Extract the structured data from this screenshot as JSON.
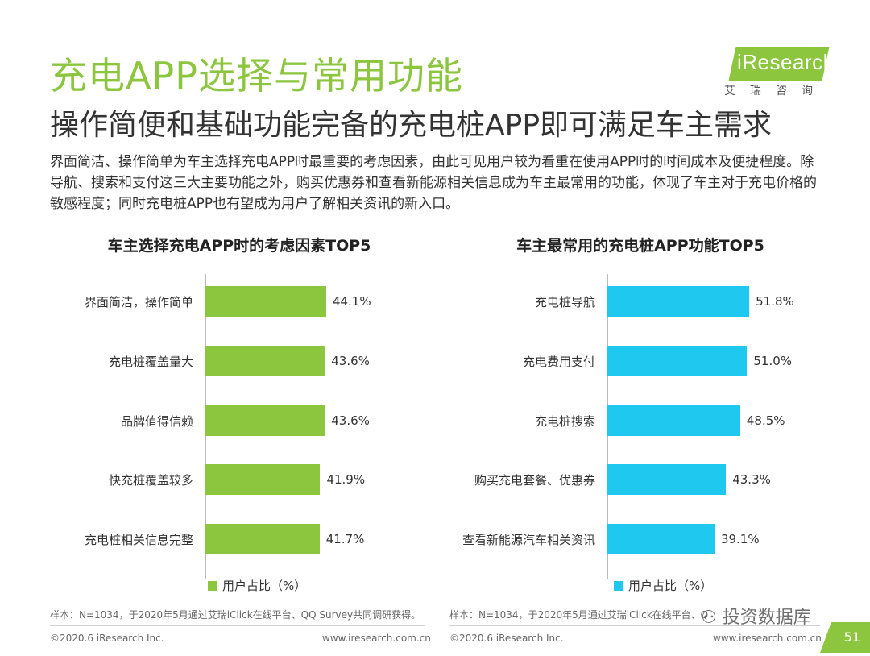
{
  "header": {
    "title": "充电APP选择与常用功能",
    "subtitle": "操作简便和基础功能完备的充电桩APP即可满足车主需求",
    "intro": "界面简洁、操作简单为车主选择充电APP时最重要的考虑因素，由此可见用户较为看重在使用APP时的时间成本及便捷程度。除导航、搜索和支付这三大主要功能之外，购买优惠券和查看新能源相关信息成为车主最常用的功能，体现了车主对于充电价格的敏感程度；同时充电桩APP也有望成为用户了解相关资讯的新入口。"
  },
  "logo": {
    "brand": "iResearch",
    "cn": "艾瑞咨询"
  },
  "colors": {
    "left_bar": "#8cc63f",
    "right_bar": "#1ec8ef",
    "title_green": "#8cc63f",
    "corner": "#8cc63f"
  },
  "chart_data": [
    {
      "type": "bar",
      "orientation": "horizontal",
      "title": "车主选择充电APP时的考虑因素TOP5",
      "categories": [
        "界面简洁，操作简单",
        "充电桩覆盖量大",
        "品牌值得信赖",
        "快充桩覆盖较多",
        "充电桩相关信息完整"
      ],
      "values": [
        44.1,
        43.6,
        43.6,
        41.9,
        41.7
      ],
      "value_labels": [
        "44.1%",
        "43.6%",
        "43.6%",
        "41.9%",
        "41.7%"
      ],
      "legend": "用户占比（%）",
      "unit": "%",
      "xlim": [
        0,
        100
      ]
    },
    {
      "type": "bar",
      "orientation": "horizontal",
      "title": "车主最常用的充电桩APP功能TOP5",
      "categories": [
        "充电桩导航",
        "充电费用支付",
        "充电桩搜索",
        "购买充电套餐、优惠券",
        "查看新能源汽车相关资讯"
      ],
      "values": [
        51.8,
        51.0,
        48.5,
        43.3,
        39.1
      ],
      "value_labels": [
        "51.8%",
        "51.0%",
        "48.5%",
        "43.3%",
        "39.1%"
      ],
      "legend": "用户占比（%）",
      "unit": "%",
      "xlim": [
        0,
        100
      ]
    }
  ],
  "notes": {
    "left": "样本：N=1034，于2020年5月通过艾瑞iClick在线平台、QQ Survey共同调研获得。",
    "right": "样本：N=1034，于2020年5月通过艾瑞iClick在线平台、Q"
  },
  "footer": {
    "left_copyright": "©2020.6 iResearch Inc.",
    "left_url": "www.iresearch.com.cn",
    "right_copyright": "©2020.6 iResearch Inc.",
    "right_url": "www.iresearch.com.cn",
    "page_number": "51"
  },
  "watermark": "投资数据库"
}
